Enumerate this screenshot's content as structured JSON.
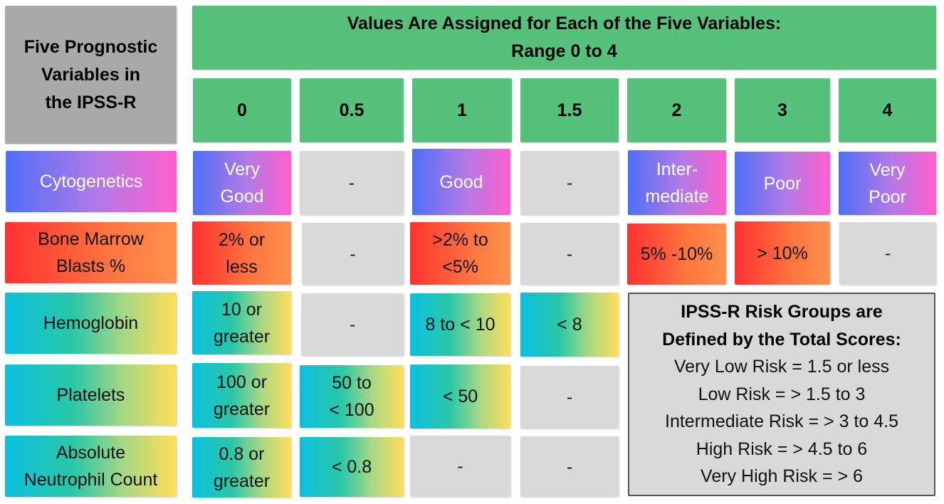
{
  "header": {
    "title": "Five Prognostic\nVariables in\nthe IPSS-R",
    "values_title": "Values Are Assigned for Each of  the Five Variables:\nRange 0 to 4"
  },
  "scores": [
    "0",
    "0.5",
    "1",
    "1.5",
    "2",
    "3",
    "4"
  ],
  "rows": [
    {
      "label": "Cytogenetics",
      "style": "cyto",
      "cells": [
        "Very\nGood",
        "-",
        "Good",
        "-",
        "Inter-\nmediate",
        "Poor",
        "Very\nPoor"
      ]
    },
    {
      "label": "Bone Marrow\nBlasts %",
      "style": "blast",
      "cells": [
        "2% or\nless",
        "-",
        ">2% to\n<5%",
        "-",
        "5% -10%",
        "> 10%",
        "-"
      ]
    },
    {
      "label": "Hemoglobin",
      "style": "lab",
      "cells": [
        "10 or\ngreater",
        "-",
        "8 to < 10",
        "< 8"
      ]
    },
    {
      "label": "Platelets",
      "style": "lab",
      "cells": [
        "100 or\ngreater",
        "50 to\n< 100",
        "< 50",
        "-"
      ]
    },
    {
      "label": "Absolute\nNeutrophil Count",
      "style": "lab",
      "cells": [
        "0.8 or\ngreater",
        "< 0.8",
        "-",
        "-"
      ]
    }
  ],
  "risk_groups": {
    "title": "IPSS-R Risk Groups are\nDefined by the Total Scores:",
    "items": [
      "Very Low Risk = 1.5 or less",
      "Low Risk = > 1.5 to 3",
      "Intermediate Risk = > 3 to 4.5",
      "High Risk = > 4.5 to 6",
      "Very High Risk = > 6"
    ]
  },
  "colors": {
    "header_green": "#56c17a",
    "title_gray": "#a9a9a9",
    "empty_gray": "#d9d9d9",
    "cytogenetics_gradient": [
      "#4f6ff7",
      "#ff5fce"
    ],
    "blasts_gradient": [
      "#ff3131",
      "#ff914d"
    ],
    "lab_gradient": [
      "#0cc0df",
      "#ffde59"
    ]
  }
}
